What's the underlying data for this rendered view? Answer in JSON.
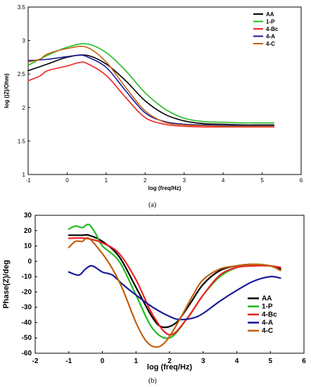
{
  "captions": {
    "a": "(a)",
    "b": "(b)"
  },
  "chart_data": [
    {
      "type": "line",
      "panel": "a",
      "xlabel": "log (freq/Hz)",
      "ylabel": "log (|Z|/Ohm)",
      "xlim": [
        -1,
        6
      ],
      "ylim": [
        1,
        3.5
      ],
      "xticks": [
        "-1",
        "0",
        "1",
        "2",
        "3",
        "4",
        "5",
        "6"
      ],
      "yticks": [
        "1",
        "1.5",
        "2",
        "2.5",
        "3",
        "3.5"
      ],
      "legend_position": "top-right",
      "grid": false,
      "series": [
        {
          "name": "AA",
          "color": "#000000",
          "x": [
            -1,
            -0.5,
            0,
            0.5,
            1,
            1.5,
            2,
            2.5,
            3,
            3.5,
            4,
            4.5,
            5,
            5.3
          ],
          "y": [
            2.55,
            2.65,
            2.75,
            2.78,
            2.65,
            2.4,
            2.1,
            1.9,
            1.8,
            1.76,
            1.75,
            1.74,
            1.74,
            1.74
          ]
        },
        {
          "name": "1-P",
          "color": "#22bb22",
          "x": [
            -1,
            -0.5,
            0,
            0.5,
            1,
            1.5,
            2,
            2.5,
            3,
            3.5,
            4,
            4.5,
            5,
            5.3
          ],
          "y": [
            2.63,
            2.78,
            2.9,
            2.95,
            2.82,
            2.55,
            2.22,
            1.98,
            1.84,
            1.79,
            1.78,
            1.77,
            1.77,
            1.77
          ]
        },
        {
          "name": "4-Bc",
          "color": "#ee2222",
          "x": [
            -1,
            -0.7,
            -0.5,
            0,
            0.3,
            0.5,
            1,
            1.5,
            2,
            2.5,
            3,
            3.5,
            4,
            4.5,
            5,
            5.3
          ],
          "y": [
            2.4,
            2.47,
            2.55,
            2.62,
            2.67,
            2.66,
            2.48,
            2.15,
            1.85,
            1.75,
            1.72,
            1.71,
            1.71,
            1.71,
            1.71,
            1.71
          ]
        },
        {
          "name": "4-A",
          "color": "#1a1a99",
          "x": [
            -1,
            -0.5,
            0,
            0.3,
            0.5,
            1,
            1.5,
            2,
            2.5,
            3,
            3.5,
            4,
            4.5,
            5,
            5.3
          ],
          "y": [
            2.7,
            2.72,
            2.76,
            2.78,
            2.76,
            2.6,
            2.25,
            1.92,
            1.79,
            1.75,
            1.74,
            1.73,
            1.73,
            1.73,
            1.73
          ]
        },
        {
          "name": "4-C",
          "color": "#c06010",
          "x": [
            -1,
            -0.7,
            -0.5,
            0,
            0.5,
            1,
            1.5,
            2,
            2.5,
            3,
            3.5,
            4,
            4.5,
            5,
            5.3
          ],
          "y": [
            2.68,
            2.72,
            2.8,
            2.88,
            2.9,
            2.68,
            2.3,
            1.95,
            1.78,
            1.74,
            1.73,
            1.72,
            1.72,
            1.72,
            1.72
          ]
        }
      ]
    },
    {
      "type": "line",
      "panel": "b",
      "xlabel": "log (freq/Hz)",
      "ylabel": "Phase(Z)/deg",
      "xlim": [
        -2,
        6
      ],
      "ylim": [
        -60,
        30
      ],
      "xticks": [
        "-2",
        "-1",
        "0",
        "1",
        "2",
        "3",
        "4",
        "5",
        "6"
      ],
      "yticks": [
        "-60",
        "-50",
        "-40",
        "-30",
        "-20",
        "-10",
        "0",
        "10",
        "20",
        "30"
      ],
      "legend_position": "right",
      "grid": false,
      "series": [
        {
          "name": "AA",
          "color": "#000000",
          "x": [
            -1,
            -0.6,
            -0.4,
            0,
            0.5,
            1,
            1.5,
            1.8,
            2.2,
            2.6,
            3,
            3.5,
            4,
            4.5,
            5,
            5.3
          ],
          "y": [
            17,
            17,
            17,
            13,
            3,
            -17,
            -37,
            -43,
            -40,
            -28,
            -15,
            -6,
            -3,
            -2,
            -3,
            -5
          ]
        },
        {
          "name": "1-P",
          "color": "#22bb22",
          "x": [
            -1,
            -0.8,
            -0.6,
            -0.4,
            -0.2,
            0,
            0.5,
            1,
            1.5,
            2,
            2.5,
            3,
            3.5,
            4,
            4.5,
            5,
            5.3
          ],
          "y": [
            21,
            23,
            22,
            24,
            18,
            10,
            0,
            -22,
            -44,
            -50,
            -38,
            -22,
            -10,
            -4,
            -2,
            -3,
            -6
          ]
        },
        {
          "name": "4-Bc",
          "color": "#ee2222",
          "x": [
            -1,
            -0.5,
            0,
            0.5,
            1,
            1.5,
            2,
            2.5,
            3,
            3.5,
            4,
            4.5,
            5,
            5.3
          ],
          "y": [
            15,
            15,
            12,
            5,
            -12,
            -35,
            -48,
            -38,
            -22,
            -9,
            -4,
            -3,
            -3,
            -4
          ]
        },
        {
          "name": "4-A",
          "color": "#1a1a99",
          "x": [
            -1,
            -0.7,
            -0.5,
            -0.3,
            0,
            0.3,
            0.6,
            1,
            1.5,
            2,
            2.3,
            2.7,
            3,
            3.5,
            4,
            4.5,
            5,
            5.3
          ],
          "y": [
            -7,
            -9,
            -5,
            -3,
            -7,
            -9,
            -15,
            -22,
            -30,
            -36,
            -38,
            -37,
            -34,
            -26,
            -19,
            -13,
            -10,
            -11
          ]
        },
        {
          "name": "4-C",
          "color": "#c06010",
          "x": [
            -1,
            -0.8,
            -0.6,
            -0.4,
            0,
            0.3,
            0.6,
            1,
            1.3,
            1.6,
            1.9,
            2.3,
            2.7,
            3,
            3.5,
            4,
            4.5,
            5,
            5.3
          ],
          "y": [
            9,
            13,
            13,
            15,
            5,
            -5,
            -18,
            -40,
            -52,
            -56,
            -52,
            -38,
            -22,
            -12,
            -5,
            -3,
            -2,
            -3,
            -6
          ]
        }
      ]
    }
  ]
}
